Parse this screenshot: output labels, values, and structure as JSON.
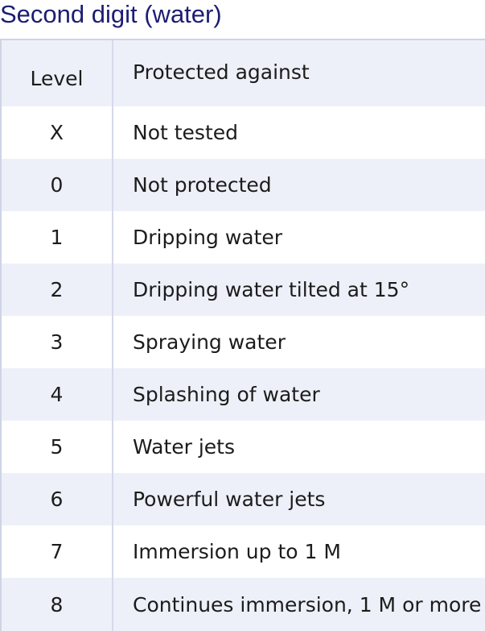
{
  "title": "Second digit (water)",
  "table": {
    "headers": {
      "level": "Level",
      "protection": "Protected against"
    },
    "rows": [
      {
        "level": "X",
        "protection": "Not tested"
      },
      {
        "level": "0",
        "protection": "Not protected"
      },
      {
        "level": "1",
        "protection": "Dripping water"
      },
      {
        "level": "2",
        "protection": "Dripping water tilted at 15°"
      },
      {
        "level": "3",
        "protection": "Spraying water"
      },
      {
        "level": "4",
        "protection": "Splashing of water"
      },
      {
        "level": "5",
        "protection": "Water jets"
      },
      {
        "level": "6",
        "protection": "Powerful water jets"
      },
      {
        "level": "7",
        "protection": "Immersion up to 1 M"
      },
      {
        "level": "8",
        "protection": "Continues immersion, 1 M or more"
      }
    ]
  },
  "colors": {
    "title": "#1d1d73",
    "shaded_row": "#eef0f9",
    "plain_row": "#ffffff",
    "text": "#1c1c1c"
  }
}
